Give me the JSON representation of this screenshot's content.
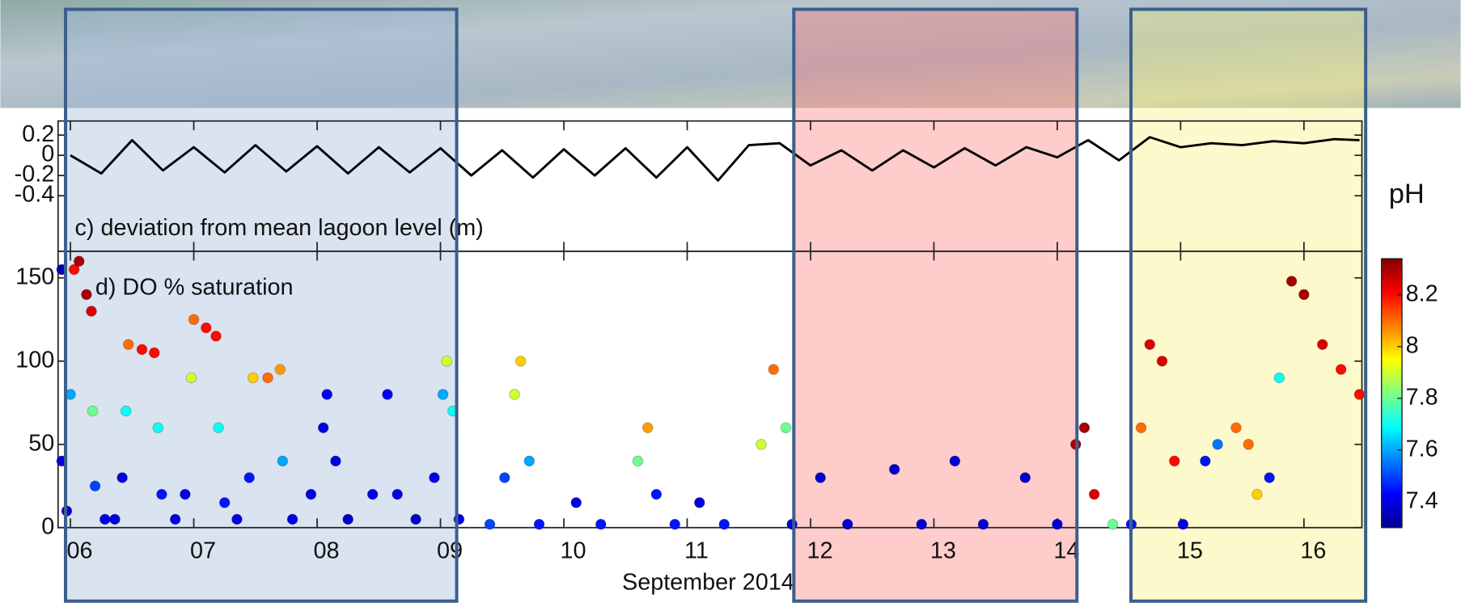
{
  "chart_data": [
    {
      "type": "line",
      "annotation": "c) deviation from mean lagoon level (m)",
      "color": "#000000",
      "xlim": [
        5.9,
        16.47
      ],
      "ylim": [
        -0.95,
        0.34
      ],
      "yticks": [
        0.2,
        0,
        -0.2,
        -0.4
      ],
      "x": [
        6.0,
        6.25,
        6.5,
        6.75,
        7.0,
        7.25,
        7.5,
        7.75,
        8.0,
        8.25,
        8.5,
        8.75,
        9.0,
        9.25,
        9.5,
        9.75,
        10.0,
        10.25,
        10.5,
        10.75,
        11.0,
        11.25,
        11.5,
        11.75,
        12.0,
        12.25,
        12.5,
        12.75,
        13.0,
        13.25,
        13.5,
        13.75,
        14.0,
        14.25,
        14.5,
        14.75,
        15.0,
        15.25,
        15.5,
        15.75,
        16.0,
        16.25,
        16.45
      ],
      "values": [
        0.0,
        -0.18,
        0.15,
        -0.15,
        0.08,
        -0.17,
        0.1,
        -0.16,
        0.09,
        -0.18,
        0.08,
        -0.17,
        0.07,
        -0.2,
        0.05,
        -0.22,
        0.06,
        -0.2,
        0.07,
        -0.22,
        0.08,
        -0.25,
        0.1,
        0.12,
        -0.1,
        0.05,
        -0.15,
        0.05,
        -0.12,
        0.07,
        -0.1,
        0.08,
        -0.02,
        0.15,
        -0.05,
        0.18,
        0.08,
        0.12,
        0.1,
        0.14,
        0.12,
        0.16,
        0.15
      ]
    },
    {
      "type": "scatter",
      "annotation": "d) DO % saturation",
      "x_label": "September 2014",
      "colormap": "jet",
      "colorbar": {
        "label": "pH",
        "lim": [
          7.3,
          8.34
        ],
        "ticks": [
          7.4,
          7.6,
          7.8,
          8,
          8.2
        ]
      },
      "xlim": [
        5.9,
        16.47
      ],
      "ylim": [
        0,
        166
      ],
      "yticks": [
        0,
        50,
        100,
        150
      ],
      "xticks": [
        {
          "value": 6,
          "label": "06"
        },
        {
          "value": 7,
          "label": "07"
        },
        {
          "value": 8,
          "label": "08"
        },
        {
          "value": 9,
          "label": "09"
        },
        10,
        11,
        12,
        13,
        14,
        15,
        16
      ],
      "x": [
        5.93,
        5.93,
        5.97,
        6.0,
        6.03,
        6.07,
        6.13,
        6.17,
        6.18,
        6.2,
        6.28,
        6.36,
        6.42,
        6.45,
        6.47,
        6.58,
        6.68,
        6.71,
        6.74,
        6.85,
        6.93,
        6.98,
        7.0,
        7.1,
        7.18,
        7.2,
        7.25,
        7.35,
        7.45,
        7.48,
        7.6,
        7.7,
        7.72,
        7.8,
        7.95,
        8.05,
        8.08,
        8.15,
        8.25,
        8.45,
        8.57,
        8.65,
        8.8,
        8.95,
        9.02,
        9.05,
        9.1,
        9.15,
        9.4,
        9.52,
        9.6,
        9.65,
        9.72,
        9.8,
        10.1,
        10.3,
        10.6,
        10.68,
        10.75,
        10.9,
        11.1,
        11.3,
        11.6,
        11.7,
        11.8,
        11.85,
        12.08,
        12.3,
        12.68,
        12.9,
        13.17,
        13.4,
        13.74,
        14.0,
        14.15,
        14.22,
        14.3,
        14.45,
        14.6,
        14.68,
        14.75,
        14.85,
        14.95,
        15.02,
        15.2,
        15.3,
        15.45,
        15.55,
        15.62,
        15.72,
        15.8,
        15.9,
        16.0,
        16.15,
        16.3,
        16.45
      ],
      "values": [
        155,
        40,
        10,
        80,
        155,
        160,
        140,
        130,
        70,
        25,
        5,
        5,
        30,
        70,
        110,
        107,
        105,
        60,
        20,
        5,
        20,
        90,
        125,
        120,
        115,
        60,
        15,
        5,
        30,
        90,
        90,
        95,
        40,
        5,
        20,
        60,
        80,
        40,
        5,
        20,
        80,
        20,
        5,
        30,
        80,
        100,
        70,
        5,
        2,
        30,
        80,
        100,
        40,
        2,
        15,
        2,
        40,
        60,
        20,
        2,
        15,
        2,
        50,
        95,
        60,
        2,
        30,
        2,
        35,
        2,
        40,
        2,
        30,
        2,
        50,
        60,
        20,
        2,
        2,
        60,
        110,
        100,
        40,
        2,
        40,
        50,
        60,
        50,
        20,
        30,
        90,
        148,
        140,
        110,
        95,
        80
      ],
      "color_values": [
        7.35,
        7.4,
        7.4,
        7.6,
        8.2,
        8.3,
        8.3,
        8.25,
        7.8,
        7.5,
        7.4,
        7.4,
        7.4,
        7.7,
        8.1,
        8.2,
        8.2,
        7.7,
        7.45,
        7.4,
        7.4,
        7.9,
        8.1,
        8.2,
        8.2,
        7.7,
        7.45,
        7.4,
        7.45,
        8.0,
        8.1,
        8.05,
        7.6,
        7.4,
        7.4,
        7.4,
        7.42,
        7.4,
        7.38,
        7.4,
        7.42,
        7.4,
        7.38,
        7.4,
        7.6,
        7.9,
        7.7,
        7.4,
        7.5,
        7.5,
        7.9,
        8.0,
        7.6,
        7.45,
        7.4,
        7.45,
        7.8,
        8.05,
        7.45,
        7.45,
        7.4,
        7.45,
        7.9,
        8.1,
        7.8,
        7.4,
        7.38,
        7.38,
        7.38,
        7.38,
        7.38,
        7.38,
        7.38,
        7.38,
        8.3,
        8.3,
        8.25,
        7.8,
        7.45,
        8.1,
        8.25,
        8.25,
        8.2,
        7.4,
        7.45,
        7.55,
        8.1,
        8.1,
        8.0,
        7.45,
        7.7,
        8.3,
        8.3,
        8.25,
        8.2,
        8.2
      ]
    }
  ]
}
